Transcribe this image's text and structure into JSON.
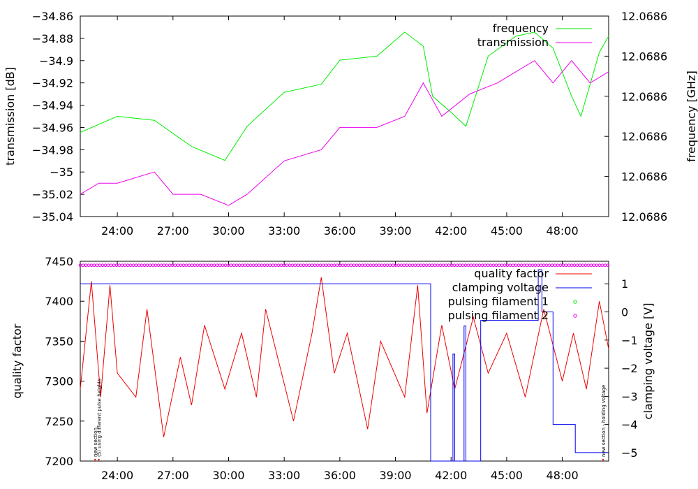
{
  "chart_data": [
    {
      "type": "line",
      "title": "",
      "xlabel": "",
      "ylabel": "transmission [dB]",
      "y2label": "frequency [GHz]",
      "xlim": [
        22.0,
        50.5
      ],
      "ylim": [
        -35.04,
        -34.86
      ],
      "y2lim": [
        0,
        1
      ],
      "grid": false,
      "legend": "top-right",
      "x_ticks": [
        24,
        27,
        30,
        33,
        36,
        39,
        42,
        45,
        48
      ],
      "x_tick_labels": [
        "24:00",
        "27:00",
        "30:00",
        "33:00",
        "36:00",
        "39:00",
        "42:00",
        "45:00",
        "48:00"
      ],
      "y_ticks": [
        -35.04,
        -35.02,
        -35,
        -34.98,
        -34.96,
        -34.94,
        -34.92,
        -34.9,
        -34.88,
        -34.86
      ],
      "y_tick_labels": [
        "−35.04",
        "−35.02",
        "−35",
        "−34.98",
        "−34.96",
        "−34.94",
        "−34.92",
        "−34.9",
        "−34.88",
        "−34.86"
      ],
      "y2_ticks": [
        0,
        0.2,
        0.4,
        0.6,
        0.8,
        1.0
      ],
      "y2_tick_labels": [
        "12.0686",
        "12.0686",
        "12.0686",
        "12.0686",
        "12.0686",
        "12.0686"
      ],
      "series": [
        {
          "name": "frequency",
          "axis": "y2",
          "color": "#00ee00",
          "x": [
            22.0,
            24.0,
            26.0,
            28.0,
            29.8,
            31.0,
            33.0,
            35.0,
            36.0,
            38.0,
            39.5,
            40.5,
            41.0,
            42.0,
            42.8,
            44.0,
            45.5,
            46.5,
            47.5,
            48.5,
            49.0,
            50.0,
            50.5
          ],
          "y": [
            0.42,
            0.5,
            0.48,
            0.35,
            0.28,
            0.45,
            0.62,
            0.66,
            0.78,
            0.8,
            0.92,
            0.85,
            0.6,
            0.52,
            0.45,
            0.8,
            0.9,
            0.92,
            0.84,
            0.6,
            0.5,
            0.82,
            0.9
          ]
        },
        {
          "name": "transmission",
          "axis": "y",
          "color": "#ee00ee",
          "x": [
            22.0,
            23.0,
            24.0,
            26.0,
            27.0,
            28.5,
            30.0,
            31.0,
            33.0,
            35.0,
            36.0,
            38.0,
            39.5,
            40.5,
            41.5,
            43.0,
            44.5,
            45.5,
            46.5,
            47.5,
            48.5,
            49.5,
            50.5
          ],
          "y": [
            -35.02,
            -35.01,
            -35.01,
            -35.0,
            -35.02,
            -35.02,
            -35.03,
            -35.02,
            -34.99,
            -34.98,
            -34.96,
            -34.96,
            -34.95,
            -34.92,
            -34.95,
            -34.93,
            -34.92,
            -34.91,
            -34.9,
            -34.92,
            -34.9,
            -34.92,
            -34.91
          ]
        }
      ]
    },
    {
      "type": "line",
      "title": "",
      "xlabel": "",
      "ylabel": "quality factor",
      "y2label": "clamping voltage [V]",
      "xlim": [
        22.0,
        50.5
      ],
      "ylim": [
        7200,
        7450
      ],
      "y2lim": [
        -5.3,
        1.8
      ],
      "grid": false,
      "legend": "top-right",
      "x_ticks": [
        24,
        27,
        30,
        33,
        36,
        39,
        42,
        45,
        48
      ],
      "x_tick_labels": [
        "24:00",
        "27:00",
        "30:00",
        "33:00",
        "36:00",
        "39:00",
        "42:00",
        "45:00",
        "48:00"
      ],
      "y_ticks": [
        7200,
        7250,
        7300,
        7350,
        7400,
        7450
      ],
      "y_tick_labels": [
        "7200",
        "7250",
        "7300",
        "7350",
        "7400",
        "7450"
      ],
      "y2_ticks": [
        -5,
        -4,
        -3,
        -2,
        -1,
        0,
        1
      ],
      "y2_tick_labels": [
        "−5",
        "−4",
        "−3",
        "−2",
        "−1",
        "0",
        "1"
      ],
      "series": [
        {
          "name": "quality factor",
          "axis": "y",
          "color": "#ee0000",
          "x": [
            22.0,
            22.6,
            23.1,
            23.6,
            24.0,
            25.0,
            25.6,
            26.5,
            27.4,
            28.0,
            28.7,
            29.8,
            30.7,
            31.5,
            32.0,
            33.5,
            34.5,
            35.0,
            35.7,
            36.4,
            37.5,
            38.2,
            39.5,
            40.2,
            40.7,
            41.5,
            42.2,
            43.2,
            44.0,
            45.0,
            46.0,
            47.0,
            48.0,
            48.6,
            49.3,
            50.0,
            50.5
          ],
          "y": [
            7290,
            7425,
            7280,
            7420,
            7310,
            7280,
            7390,
            7230,
            7330,
            7270,
            7370,
            7290,
            7360,
            7280,
            7390,
            7250,
            7360,
            7430,
            7310,
            7360,
            7240,
            7350,
            7280,
            7420,
            7260,
            7370,
            7290,
            7380,
            7310,
            7360,
            7280,
            7390,
            7300,
            7360,
            7290,
            7400,
            7340
          ]
        },
        {
          "name": "clamping voltage",
          "axis": "y2",
          "color": "#0000ee",
          "x": [
            22.0,
            40.9,
            40.9,
            42.1,
            42.1,
            42.2,
            42.2,
            42.7,
            42.7,
            42.8,
            42.8,
            43.6,
            43.6,
            46.7,
            46.7,
            46.9,
            46.9,
            47.5,
            47.5,
            48.7,
            48.7,
            50.5
          ],
          "y": [
            1,
            1,
            -5.3,
            -5.3,
            -1.5,
            -1.5,
            -5.3,
            -5.3,
            -0.5,
            -0.5,
            -5.3,
            -5.3,
            -0.3,
            -0.3,
            1.5,
            1.5,
            0,
            0,
            -4,
            -4,
            -5,
            -5
          ]
        },
        {
          "name": "pulsing filament 1",
          "axis": "y",
          "color": "#00ee00",
          "x": [],
          "y": []
        },
        {
          "name": "pulsing filament 2",
          "axis": "y",
          "color": "#ee00ee",
          "x": [
            22.0,
            50.5
          ],
          "y": [
            7445,
            7445
          ]
        }
      ],
      "annotations": [
        {
          "x": 22.8,
          "text": "new section"
        },
        {
          "x": 23.0,
          "text": "(5) using different pulse heights"
        },
        {
          "x": 50.2,
          "text": "new section - holding voltage"
        }
      ]
    }
  ]
}
